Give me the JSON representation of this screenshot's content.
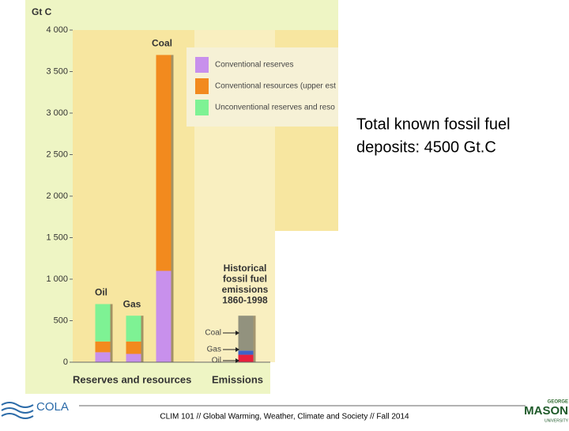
{
  "chart_data": {
    "type": "bar",
    "stacked": true,
    "y_label": "Gt C",
    "categories": [
      "Oil",
      "Gas",
      "Coal",
      null
    ],
    "series": [
      {
        "name": "Conventional reserves",
        "color": "#c890ec",
        "values": [
          120,
          100,
          1100,
          null
        ]
      },
      {
        "name": "Conventional resources (upper est",
        "color": "#f28a1e",
        "values": [
          130,
          150,
          2600,
          null
        ]
      },
      {
        "name": "Unconventional reserves and reso",
        "color": "#7ef294",
        "values": [
          450,
          310,
          null,
          null
        ]
      },
      {
        "name": "Oil",
        "color": "#e8203c",
        "values": [
          null,
          null,
          null,
          90
        ]
      },
      {
        "name": "Gas",
        "color": "#3e62c6",
        "values": [
          null,
          null,
          null,
          50
        ]
      },
      {
        "name": "Coal",
        "color": "#92927e",
        "values": [
          null,
          null,
          null,
          420
        ]
      }
    ],
    "ylim": [
      0,
      4000
    ],
    "yticks": [
      0,
      500,
      {
        "value": 1000,
        "label": "1 000"
      },
      {
        "value": 1500,
        "label": "1 500"
      },
      {
        "value": 2000,
        "label": "2 000"
      },
      {
        "value": 2500,
        "label": "2 500"
      },
      {
        "value": 3000,
        "label": "3 000"
      },
      {
        "value": 3500,
        "label": "3 500"
      },
      {
        "value": 4000,
        "label": "4 000"
      }
    ],
    "groups": [
      "Reserves and resources",
      "Emissions"
    ],
    "annotation": [
      "Historical",
      "fossil fuel",
      "emissions",
      "1860-1998"
    ]
  },
  "slide": {
    "text": [
      "Total known fossil fuel",
      "deposits: 4500 Gt.C"
    ],
    "footer": "CLIM 101 // Global Warming, Weather, Climate and Society // Fall 2014",
    "logo_left": "COLA",
    "logo_right": [
      "GEORGE",
      "MASON",
      "UNIVERSITY"
    ]
  }
}
